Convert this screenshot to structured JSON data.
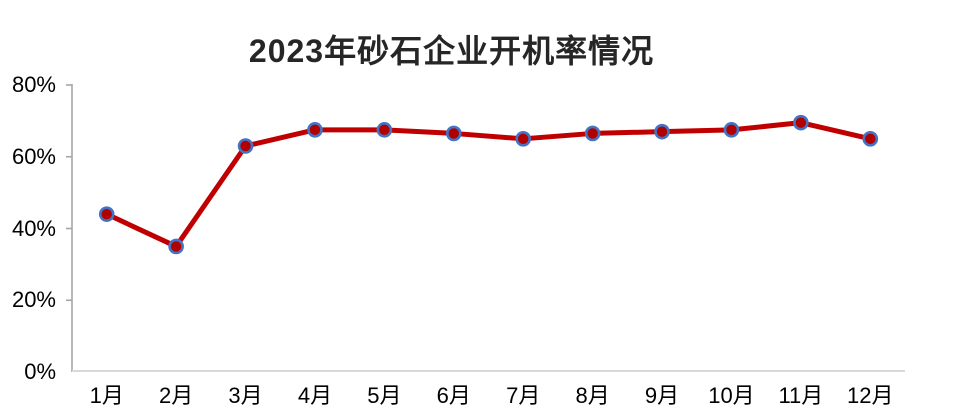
{
  "chart_data": {
    "type": "line",
    "title": "2023年砂石企业开机率情况",
    "categories": [
      "1月",
      "2月",
      "3月",
      "4月",
      "5月",
      "6月",
      "7月",
      "8月",
      "9月",
      "10月",
      "11月",
      "12月"
    ],
    "series": [
      {
        "name": "开机率",
        "values": [
          44,
          35,
          63,
          67.5,
          67.5,
          66.5,
          65,
          66.5,
          67,
          67.5,
          69.5,
          65
        ]
      }
    ],
    "unit": "%",
    "xlabel": "",
    "ylabel": "",
    "ylim": [
      0,
      80
    ],
    "y_ticks": [
      0,
      20,
      40,
      60,
      80
    ],
    "y_tick_labels": [
      "0%",
      "20%",
      "40%",
      "60%",
      "80%"
    ],
    "grid": false,
    "legend_position": "none",
    "colors": {
      "line": "#C00000",
      "marker_fill": "#B00000",
      "marker_border": "#4472C4",
      "y_axis_line": "#A6A6A6",
      "x_axis_line": "#D9D9D9",
      "title_text": "#262626",
      "tick_text": "#000000",
      "background": "#FFFFFF"
    }
  }
}
